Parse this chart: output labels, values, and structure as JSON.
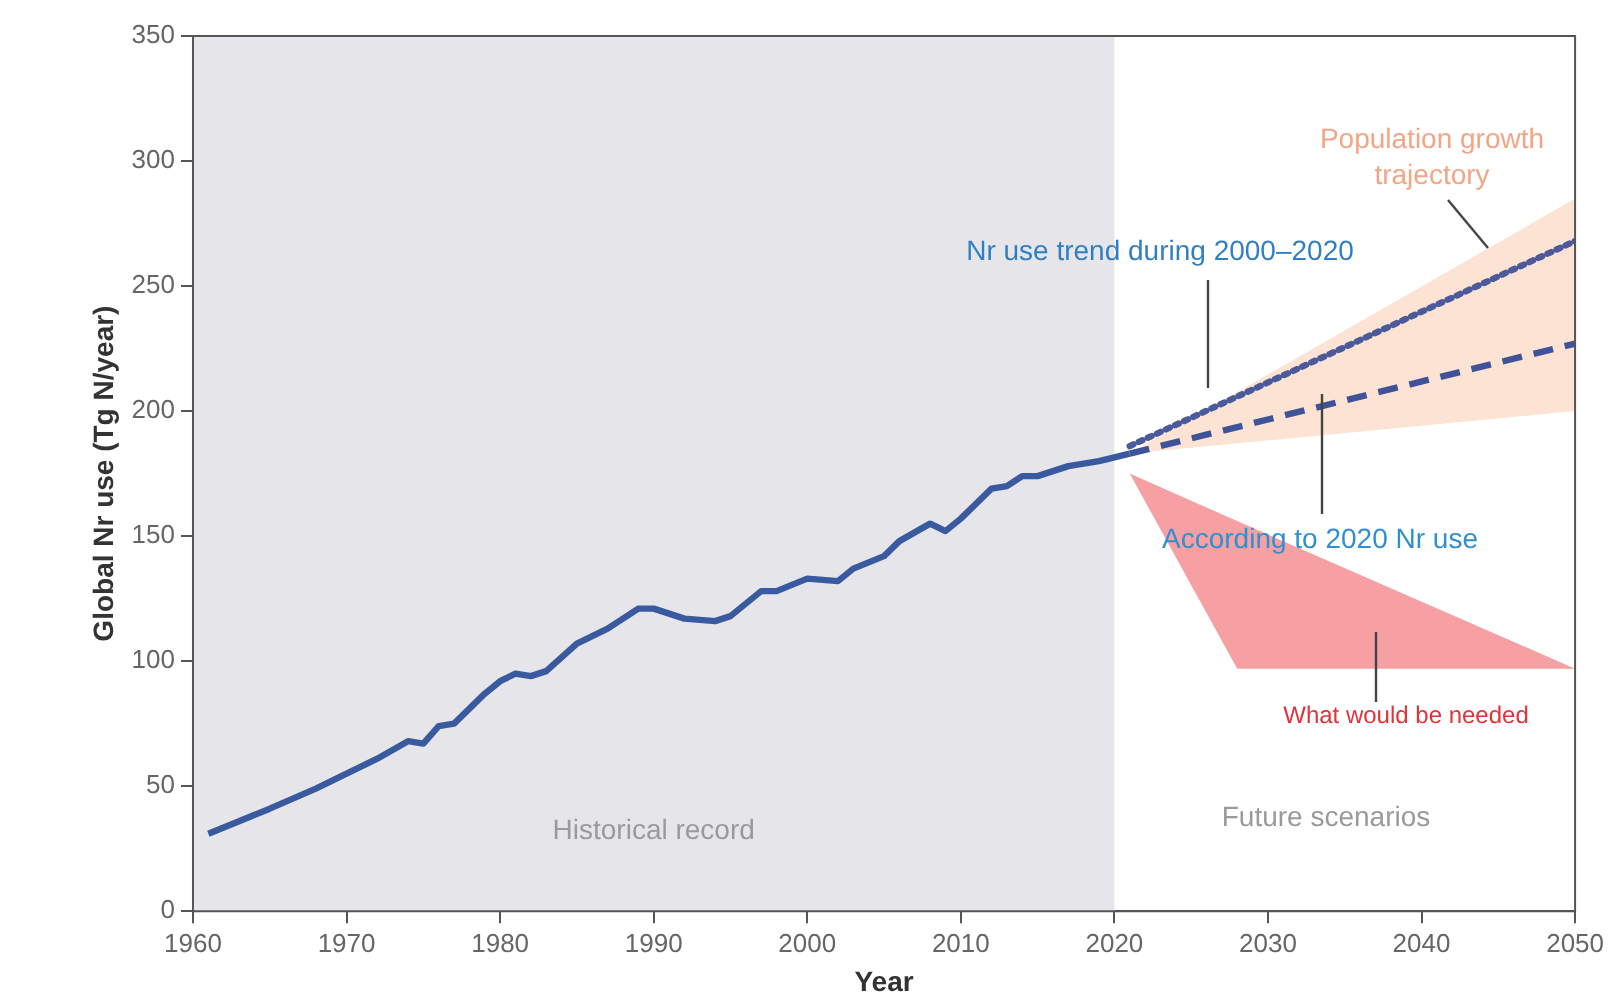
{
  "chart_data": {
    "type": "line",
    "xlabel": "Year",
    "ylabel": "Global Nr use (Tg N/year)",
    "xlim": [
      1960,
      2050
    ],
    "ylim": [
      0,
      350
    ],
    "xticks": [
      1960,
      1970,
      1980,
      1990,
      2000,
      2010,
      2020,
      2030,
      2040,
      2050
    ],
    "yticks": [
      0,
      50,
      100,
      150,
      200,
      250,
      300,
      350
    ],
    "grid": false,
    "legend": false,
    "marker": "none",
    "series": [
      {
        "color": "#3a5aa0",
        "line_style": "solid",
        "x": [
          1961,
          1963,
          1965,
          1968,
          1970,
          1972,
          1974,
          1975,
          1976,
          1977,
          1979,
          1980,
          1981,
          1982,
          1983,
          1985,
          1987,
          1989,
          1990,
          1992,
          1994,
          1995,
          1997,
          1998,
          2000,
          2002,
          2003,
          2005,
          2006,
          2008,
          2009,
          2010,
          2012,
          2013,
          2014,
          2015,
          2017,
          2019,
          2021
        ],
        "values": [
          31,
          36,
          41,
          49,
          55,
          61,
          68,
          67,
          74,
          75,
          87,
          92,
          95,
          94,
          96,
          107,
          113,
          121,
          121,
          117,
          116,
          118,
          128,
          128,
          133,
          132,
          137,
          142,
          148,
          155,
          152,
          157,
          169,
          170,
          174,
          174,
          178,
          180,
          183
        ]
      },
      {
        "color": "#4a5a9a",
        "line_style": "dotted",
        "x": [
          2021,
          2050
        ],
        "values": [
          186,
          268
        ]
      },
      {
        "color": "#3f5498",
        "line_style": "dashed",
        "x": [
          2021,
          2050
        ],
        "values": [
          183,
          227
        ]
      },
      {
        "type": "area",
        "color": "#fde3d3",
        "x": [
          2021,
          2050
        ],
        "values": [
          null,
          null
        ],
        "lower": [
          183,
          200
        ],
        "upper": [
          183,
          285
        ]
      },
      {
        "type": "area",
        "color": "#f7a0a3",
        "x": [
          2021,
          2028,
          2050
        ],
        "values": [
          null,
          null,
          null
        ],
        "lower": [
          175,
          97,
          97
        ],
        "upper": [
          175,
          156,
          97
        ]
      }
    ],
    "bands": [
      {
        "axis": "x",
        "from": 1960,
        "to": 2020,
        "label": "Historical record",
        "color": "#e6e6ea"
      }
    ],
    "annotations": [
      "Population growth trajectory",
      "Nr use trend during 2000–2020",
      "According to 2020 Nr use",
      "What would be needed",
      "Future scenarios"
    ]
  }
}
